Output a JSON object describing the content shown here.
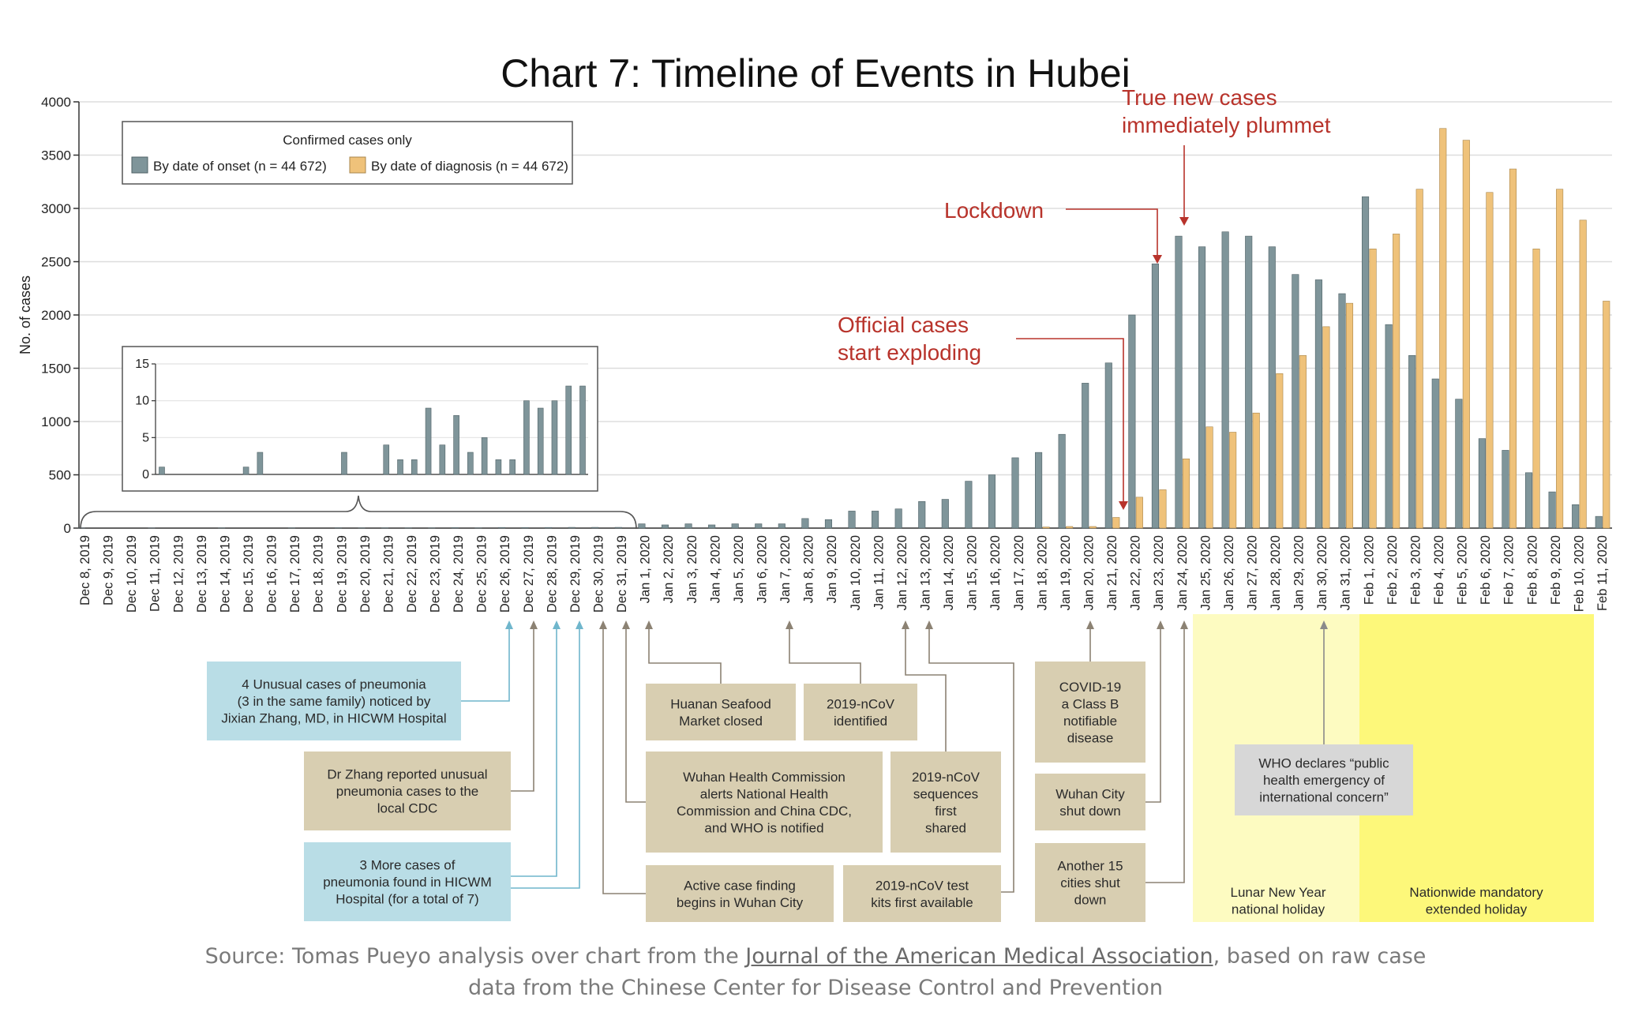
{
  "colors": {
    "onset": "#7f959a",
    "diagnosis": "#efc27a",
    "annotation_red": "#b8332b",
    "blue_box": "#b9dde6",
    "tan_box": "#d8ceb1",
    "gray_box": "#d7d7d7",
    "lunar_band": "#fdfbc1",
    "mandatory_band": "#fdf87a"
  },
  "chart_data": {
    "type": "bar",
    "title": "Chart 7: Timeline of Events in Hubei",
    "ylabel": "No. of cases",
    "xlabel": "",
    "ylim": [
      0,
      4000
    ],
    "yticks": [
      0,
      500,
      1000,
      1500,
      2000,
      2500,
      3000,
      3500,
      4000
    ],
    "grid": true,
    "legend_position": "top-left",
    "legend_title": "Confirmed cases only",
    "categories": [
      "Dec 8, 2019",
      "Dec 9, 2019",
      "Dec 10, 2019",
      "Dec 11, 2019",
      "Dec 12, 2019",
      "Dec 13, 2019",
      "Dec 14, 2019",
      "Dec 15, 2019",
      "Dec 16, 2019",
      "Dec 17, 2019",
      "Dec 18, 2019",
      "Dec 19, 2019",
      "Dec 20, 2019",
      "Dec 21, 2019",
      "Dec 22, 2019",
      "Dec 23, 2019",
      "Dec 24, 2019",
      "Dec 25, 2019",
      "Dec 26, 2019",
      "Dec 27, 2019",
      "Dec 28, 2019",
      "Dec 29, 2019",
      "Dec 30, 2019",
      "Dec 31, 2019",
      "Jan 1, 2020",
      "Jan 2, 2020",
      "Jan 3, 2020",
      "Jan 4, 2020",
      "Jan 5, 2020",
      "Jan 6, 2020",
      "Jan 7, 2020",
      "Jan 8, 2020",
      "Jan 9, 2020",
      "Jan 10, 2020",
      "Jan 11, 2020",
      "Jan 12, 2020",
      "Jan 13, 2020",
      "Jan 14, 2020",
      "Jan 15, 2020",
      "Jan 16, 2020",
      "Jan 17, 2020",
      "Jan 18, 2020",
      "Jan 19, 2020",
      "Jan 20, 2020",
      "Jan 21, 2020",
      "Jan 22, 2020",
      "Jan 23, 2020",
      "Jan 24, 2020",
      "Jan 25, 2020",
      "Jan 26, 2020",
      "Jan 27, 2020",
      "Jan 28, 2020",
      "Jan 29, 2020",
      "Jan 30, 2020",
      "Jan 31, 2020",
      "Feb 1, 2020",
      "Feb 2, 2020",
      "Feb 3, 2020",
      "Feb 4, 2020",
      "Feb 5, 2020",
      "Feb 6, 2020",
      "Feb 7, 2020",
      "Feb 8, 2020",
      "Feb 9, 2020",
      "Feb 10, 2020",
      "Feb 11, 2020"
    ],
    "series": [
      {
        "name": "By date of onset (n = 44 672)",
        "values": [
          1,
          0,
          0,
          1,
          0,
          0,
          2,
          0,
          0,
          2,
          0,
          3,
          2,
          2,
          2,
          2,
          4,
          2,
          6,
          5,
          6,
          7,
          7,
          7,
          40,
          30,
          40,
          30,
          40,
          40,
          40,
          90,
          80,
          160,
          160,
          180,
          250,
          270,
          440,
          500,
          660,
          710,
          880,
          1360,
          1550,
          2000,
          2480,
          2740,
          2640,
          2780,
          2740,
          2640,
          2380,
          2330,
          2200,
          3110,
          1910,
          1620,
          1400,
          1210,
          840,
          730,
          520,
          340,
          220,
          110
        ]
      },
      {
        "name": "By date of diagnosis (n = 44 672)",
        "values": [
          0,
          0,
          0,
          0,
          0,
          0,
          0,
          0,
          0,
          0,
          0,
          0,
          0,
          0,
          0,
          0,
          0,
          0,
          0,
          0,
          0,
          0,
          0,
          0,
          0,
          0,
          0,
          0,
          0,
          0,
          0,
          0,
          0,
          0,
          0,
          0,
          0,
          0,
          0,
          0,
          0,
          10,
          15,
          15,
          100,
          290,
          360,
          650,
          950,
          900,
          1080,
          1450,
          1620,
          1890,
          2110,
          2620,
          2760,
          3180,
          3750,
          3640,
          3150,
          3370,
          2620,
          3180,
          2890,
          2130
        ]
      }
    ],
    "inset": {
      "ylim": [
        0,
        15
      ],
      "yticks": [
        0,
        5,
        10,
        15
      ],
      "values": [
        1,
        0,
        0,
        0,
        0,
        0,
        1,
        3,
        0,
        0,
        0,
        0,
        0,
        3,
        0,
        0,
        4,
        2,
        2,
        9,
        4,
        8,
        3,
        5,
        2,
        2,
        10,
        9,
        10,
        12,
        12
      ]
    }
  },
  "annotations": {
    "lockdown": "Lockdown",
    "plummet": [
      "True new cases",
      "immediately plummet"
    ],
    "exploding": [
      "Official cases",
      "start exploding"
    ]
  },
  "events": [
    {
      "lines": [
        "4 Unusual cases of pneumonia",
        "(3 in the same family) noticed by",
        "Jixian Zhang, MD, in HICWM Hospital"
      ],
      "style": "blue"
    },
    {
      "lines": [
        "Dr Zhang reported unusual",
        "pneumonia cases to the",
        "local CDC"
      ],
      "style": "tan"
    },
    {
      "lines": [
        "3 More cases of",
        "pneumonia found in HICWM",
        "Hospital (for a total of 7)"
      ],
      "style": "blue"
    },
    {
      "lines": [
        "Huanan Seafood",
        "Market closed"
      ],
      "style": "tan"
    },
    {
      "lines": [
        "2019-nCoV",
        "identified"
      ],
      "style": "tan"
    },
    {
      "lines": [
        "Wuhan Health Commission",
        "alerts National Health",
        "Commission and China CDC,",
        "and WHO is notified"
      ],
      "style": "tan"
    },
    {
      "lines": [
        "2019-nCoV",
        "sequences",
        "first",
        "shared"
      ],
      "style": "tan"
    },
    {
      "lines": [
        "Active case finding",
        "begins in Wuhan City"
      ],
      "style": "tan"
    },
    {
      "lines": [
        "2019-nCoV test",
        "kits first available"
      ],
      "style": "tan"
    },
    {
      "lines": [
        "COVID-19",
        "a Class B",
        "notifiable",
        "disease"
      ],
      "style": "tan"
    },
    {
      "lines": [
        "Wuhan City",
        "shut down"
      ],
      "style": "tan"
    },
    {
      "lines": [
        "Another 15",
        "cities shut",
        "down"
      ],
      "style": "tan"
    },
    {
      "lines": [
        "WHO declares “public",
        "health emergency of",
        "international concern”"
      ],
      "style": "gray"
    }
  ],
  "holidays": [
    {
      "lines": [
        "Lunar New Year",
        "national holiday"
      ]
    },
    {
      "lines": [
        "Nationwide mandatory",
        "extended holiday"
      ]
    }
  ],
  "source": {
    "prefix": "Source: Tomas Pueyo analysis over chart from the ",
    "link": "Journal of the American Medical Association",
    "suffix": ", based on raw case",
    "line2": "data from the Chinese Center for Disease Control and Prevention"
  }
}
